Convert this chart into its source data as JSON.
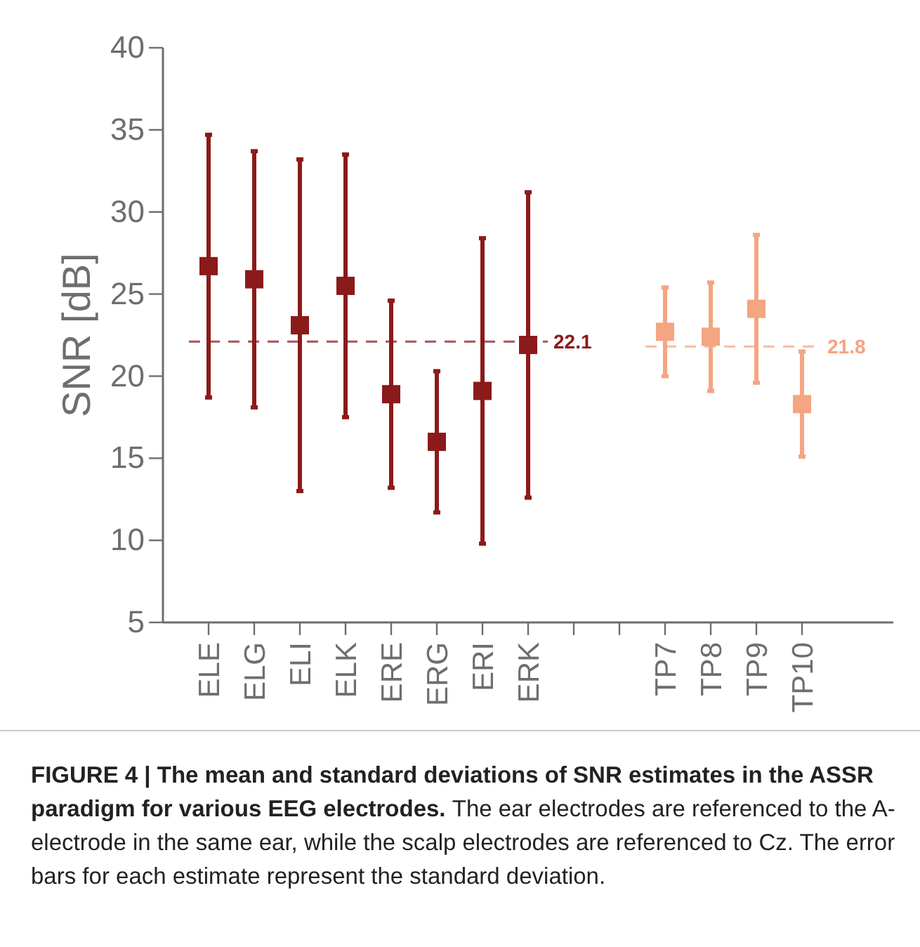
{
  "chart_data": {
    "type": "scatter",
    "ylabel": "SNR [dB]",
    "marker": "square",
    "grid": false,
    "categories": [
      "ELE",
      "ELG",
      "ELI",
      "ELK",
      "ERE",
      "ERG",
      "ERI",
      "ERK",
      null,
      null,
      "TP7",
      "TP8",
      "TP9",
      "TP10"
    ],
    "ylim": [
      5,
      40
    ],
    "yticks": [
      5,
      10,
      15,
      20,
      25,
      30,
      35,
      40
    ],
    "series": [
      {
        "color": "#8b1a1a",
        "values": [
          26.7,
          25.9,
          23.1,
          25.5,
          18.9,
          16.0,
          19.1,
          21.9,
          null,
          null,
          null,
          null,
          null,
          null
        ],
        "errors": [
          8.0,
          7.8,
          10.1,
          8.0,
          5.7,
          4.3,
          9.3,
          9.3,
          null,
          null,
          null,
          null,
          null,
          null
        ]
      },
      {
        "color": "#f4a582",
        "values": [
          null,
          null,
          null,
          null,
          null,
          null,
          null,
          null,
          null,
          null,
          22.7,
          22.4,
          24.1,
          18.3
        ],
        "errors": [
          null,
          null,
          null,
          null,
          null,
          null,
          null,
          null,
          null,
          null,
          2.7,
          3.3,
          4.5,
          3.2
        ]
      }
    ],
    "ref_lines": [
      {
        "axis": "y",
        "value": 22.1,
        "label": "22.1",
        "color": "#8b1a1a",
        "line_style": "dashed"
      },
      {
        "axis": "y",
        "value": 21.8,
        "label": "21.8",
        "color": "#f4a582",
        "line_style": "dashed"
      }
    ],
    "annotations": [
      "FIGURE 4 | The mean and standard deviations of SNR estimates in the ASSR paradigm for various EEG electrodes.",
      "The ear electrodes are referenced to the A-electrode in the same ear, while the scalp electrodes are referenced to Cz. The error bars for each estimate represent the standard deviation."
    ]
  }
}
